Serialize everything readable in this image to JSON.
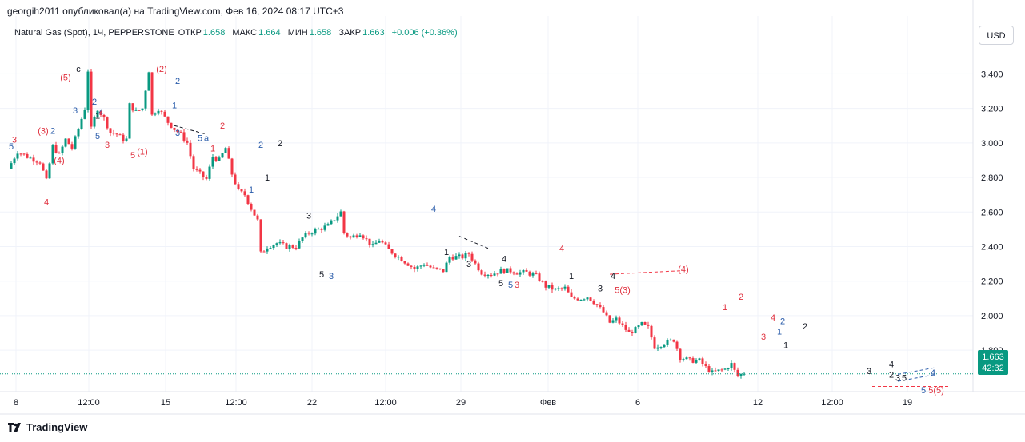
{
  "header": {
    "published_by": "georgih2011 опубликовал(а) на TradingView.com, Фев 16, 2024 08:17 UTC+3"
  },
  "legend": {
    "symbol": "Natural Gas (Spot), 1Ч, PEPPERSTONE",
    "open_label": "ОТКР",
    "open_value": "1.658",
    "high_label": "МАКС",
    "high_value": "1.664",
    "low_label": "МИН",
    "low_value": "1.658",
    "close_label": "ЗАКР",
    "close_value": "1.663",
    "change": "+0.006 (+0.36%)"
  },
  "currency_button": "USD",
  "price_badge": {
    "price": "1.663",
    "countdown": "42:32"
  },
  "footer": {
    "brand": "TradingView"
  },
  "colors": {
    "up": "#089981",
    "down": "#f23645",
    "wave_red": "#e0313f",
    "wave_blue": "#2a5caa",
    "wave_black": "#131722"
  },
  "chart_data": {
    "type": "candlestick",
    "y_axis": {
      "ticks": [
        "3.400",
        "3.200",
        "3.000",
        "2.800",
        "2.600",
        "2.400",
        "2.200",
        "2.000",
        "1.800"
      ],
      "range": [
        1.56,
        3.55
      ]
    },
    "x_axis": {
      "ticks": [
        "8",
        "12:00",
        "15",
        "12:00",
        "22",
        "12:00",
        "29",
        "Фев",
        "6",
        "12",
        "12:00",
        "19"
      ]
    },
    "current_price": 1.663,
    "price_path": [
      [
        0,
        2.85
      ],
      [
        3,
        2.95
      ],
      [
        6,
        2.92
      ],
      [
        10,
        2.89
      ],
      [
        12,
        2.78
      ],
      [
        14,
        2.98
      ],
      [
        16,
        2.93
      ],
      [
        18,
        3.02
      ],
      [
        20,
        2.97
      ],
      [
        22,
        3.08
      ],
      [
        24,
        3.2
      ],
      [
        25,
        3.42
      ],
      [
        26,
        3.08
      ],
      [
        28,
        3.2
      ],
      [
        30,
        3.14
      ],
      [
        32,
        3.06
      ],
      [
        34,
        3.05
      ],
      [
        36,
        3.02
      ],
      [
        37,
        3.02
      ],
      [
        38,
        3.22
      ],
      [
        40,
        3.18
      ],
      [
        42,
        3.2
      ],
      [
        44,
        3.42
      ],
      [
        45,
        3.16
      ],
      [
        47,
        3.2
      ],
      [
        50,
        3.12
      ],
      [
        52,
        3.08
      ],
      [
        54,
        3.05
      ],
      [
        56,
        3.0
      ],
      [
        58,
        2.85
      ],
      [
        60,
        2.82
      ],
      [
        62,
        2.79
      ],
      [
        64,
        2.92
      ],
      [
        66,
        2.9
      ],
      [
        68,
        2.97
      ],
      [
        70,
        2.82
      ],
      [
        72,
        2.72
      ],
      [
        74,
        2.7
      ],
      [
        76,
        2.62
      ],
      [
        78,
        2.55
      ],
      [
        79,
        2.36
      ],
      [
        81,
        2.4
      ],
      [
        84,
        2.42
      ],
      [
        87,
        2.4
      ],
      [
        90,
        2.4
      ],
      [
        92,
        2.45
      ],
      [
        94,
        2.48
      ],
      [
        97,
        2.5
      ],
      [
        100,
        2.52
      ],
      [
        102,
        2.56
      ],
      [
        104,
        2.6
      ],
      [
        105,
        2.48
      ],
      [
        107,
        2.45
      ],
      [
        110,
        2.48
      ],
      [
        112,
        2.44
      ],
      [
        114,
        2.4
      ],
      [
        116,
        2.44
      ],
      [
        119,
        2.38
      ],
      [
        122,
        2.34
      ],
      [
        125,
        2.3
      ],
      [
        127,
        2.27
      ],
      [
        130,
        2.3
      ],
      [
        133,
        2.27
      ],
      [
        136,
        2.26
      ],
      [
        138,
        2.34
      ],
      [
        140,
        2.34
      ],
      [
        142,
        2.34
      ],
      [
        144,
        2.36
      ],
      [
        146,
        2.3
      ],
      [
        148,
        2.25
      ],
      [
        151,
        2.24
      ],
      [
        154,
        2.26
      ],
      [
        157,
        2.26
      ],
      [
        159,
        2.25
      ],
      [
        162,
        2.25
      ],
      [
        165,
        2.23
      ],
      [
        168,
        2.17
      ],
      [
        171,
        2.15
      ],
      [
        174,
        2.16
      ],
      [
        176,
        2.1
      ],
      [
        179,
        2.1
      ],
      [
        181,
        2.11
      ],
      [
        183,
        2.08
      ],
      [
        186,
        2.02
      ],
      [
        188,
        1.96
      ],
      [
        190,
        1.98
      ],
      [
        192,
        1.94
      ],
      [
        194,
        1.9
      ],
      [
        196,
        1.92
      ],
      [
        198,
        1.95
      ],
      [
        200,
        1.93
      ],
      [
        202,
        1.82
      ],
      [
        205,
        1.84
      ],
      [
        208,
        1.86
      ],
      [
        210,
        1.76
      ],
      [
        213,
        1.74
      ],
      [
        216,
        1.74
      ],
      [
        218,
        1.7
      ],
      [
        220,
        1.67
      ],
      [
        222,
        1.68
      ],
      [
        224,
        1.69
      ],
      [
        226,
        1.72
      ],
      [
        227,
        1.68
      ],
      [
        228,
        1.65
      ],
      [
        229,
        1.66
      ],
      [
        230,
        1.663
      ]
    ],
    "wave_labels": [
      {
        "text": "3",
        "bar": 2,
        "price": 3.02,
        "color": "red"
      },
      {
        "text": "5",
        "bar": 1,
        "price": 2.98,
        "color": "blue"
      },
      {
        "text": "4",
        "bar": 12,
        "price": 2.66,
        "color": "red"
      },
      {
        "text": "(3)",
        "bar": 11,
        "price": 3.07,
        "color": "red"
      },
      {
        "text": "2",
        "bar": 14,
        "price": 3.07,
        "color": "blue"
      },
      {
        "text": "(4)",
        "bar": 16,
        "price": 2.9,
        "color": "red"
      },
      {
        "text": "(5)",
        "bar": 18,
        "price": 3.38,
        "color": "red"
      },
      {
        "text": "c",
        "bar": 22,
        "price": 3.43,
        "color": "black"
      },
      {
        "text": "3",
        "bar": 21,
        "price": 3.19,
        "color": "blue"
      },
      {
        "text": "2",
        "bar": 27,
        "price": 3.24,
        "color": "blue"
      },
      {
        "text": "1",
        "bar": 28,
        "price": 3.16,
        "color": "black"
      },
      {
        "text": "5",
        "bar": 28,
        "price": 3.04,
        "color": "blue"
      },
      {
        "text": "4",
        "bar": 29,
        "price": 3.18,
        "color": "blue"
      },
      {
        "text": "3",
        "bar": 31,
        "price": 2.99,
        "color": "red"
      },
      {
        "text": "5",
        "bar": 39,
        "price": 2.93,
        "color": "red"
      },
      {
        "text": "(1)",
        "bar": 42,
        "price": 2.95,
        "color": "red"
      },
      {
        "text": "(2)",
        "bar": 48,
        "price": 3.43,
        "color": "red"
      },
      {
        "text": "2",
        "bar": 53,
        "price": 3.36,
        "color": "blue"
      },
      {
        "text": "1",
        "bar": 52,
        "price": 3.22,
        "color": "blue"
      },
      {
        "text": "3",
        "bar": 53,
        "price": 3.06,
        "color": "blue"
      },
      {
        "text": "5",
        "bar": 60,
        "price": 3.03,
        "color": "blue"
      },
      {
        "text": "a",
        "bar": 62,
        "price": 3.03,
        "color": "blue"
      },
      {
        "text": "1",
        "bar": 64,
        "price": 2.97,
        "color": "red"
      },
      {
        "text": "2",
        "bar": 67,
        "price": 3.1,
        "color": "red"
      },
      {
        "text": "1",
        "bar": 76,
        "price": 2.73,
        "color": "blue"
      },
      {
        "text": "2",
        "bar": 79,
        "price": 2.99,
        "color": "blue"
      },
      {
        "text": "1",
        "bar": 81,
        "price": 2.8,
        "color": "black"
      },
      {
        "text": "2",
        "bar": 85,
        "price": 3.0,
        "color": "black"
      },
      {
        "text": "3",
        "bar": 94,
        "price": 2.58,
        "color": "black"
      },
      {
        "text": "5",
        "bar": 98,
        "price": 2.24,
        "color": "black"
      },
      {
        "text": "3",
        "bar": 101,
        "price": 2.23,
        "color": "blue"
      },
      {
        "text": "4",
        "bar": 133,
        "price": 2.62,
        "color": "blue"
      },
      {
        "text": "1",
        "bar": 137,
        "price": 2.37,
        "color": "black"
      },
      {
        "text": "3",
        "bar": 144,
        "price": 2.3,
        "color": "black"
      },
      {
        "text": "4",
        "bar": 155,
        "price": 2.33,
        "color": "black"
      },
      {
        "text": "5",
        "bar": 154,
        "price": 2.19,
        "color": "black"
      },
      {
        "text": "5",
        "bar": 157,
        "price": 2.18,
        "color": "blue"
      },
      {
        "text": "3",
        "bar": 159,
        "price": 2.18,
        "color": "red"
      },
      {
        "text": "4",
        "bar": 173,
        "price": 2.39,
        "color": "red"
      },
      {
        "text": "1",
        "bar": 176,
        "price": 2.23,
        "color": "black"
      },
      {
        "text": "3",
        "bar": 185,
        "price": 2.16,
        "color": "black"
      },
      {
        "text": "4",
        "bar": 189,
        "price": 2.23,
        "color": "black"
      },
      {
        "text": "5(3)",
        "bar": 192,
        "price": 2.15,
        "color": "red"
      },
      {
        "text": "(4)",
        "bar": 211,
        "price": 2.27,
        "color": "red"
      },
      {
        "text": "1",
        "bar": 224,
        "price": 2.05,
        "color": "red"
      },
      {
        "text": "2",
        "bar": 229,
        "price": 2.11,
        "color": "red"
      },
      {
        "text": "3",
        "bar": 236,
        "price": 1.88,
        "color": "red"
      },
      {
        "text": "4",
        "bar": 239,
        "price": 1.99,
        "color": "red"
      },
      {
        "text": "1",
        "bar": 241,
        "price": 1.91,
        "color": "blue"
      },
      {
        "text": "2",
        "bar": 242,
        "price": 1.97,
        "color": "blue"
      },
      {
        "text": "1",
        "bar": 243,
        "price": 1.83,
        "color": "black"
      },
      {
        "text": "2",
        "bar": 249,
        "price": 1.94,
        "color": "black"
      },
      {
        "text": "3",
        "bar": 269,
        "price": 1.68,
        "color": "black"
      },
      {
        "text": "4",
        "bar": 276,
        "price": 1.72,
        "color": "black"
      },
      {
        "text": "2",
        "bar": 276,
        "price": 1.66,
        "color": "black"
      },
      {
        "text": "3",
        "bar": 278,
        "price": 1.64,
        "color": "black"
      },
      {
        "text": "5",
        "bar": 280,
        "price": 1.64,
        "color": "black"
      },
      {
        "text": "4",
        "bar": 289,
        "price": 1.67,
        "color": "blue"
      },
      {
        "text": "5",
        "bar": 286,
        "price": 1.57,
        "color": "blue"
      },
      {
        "text": "5(5)",
        "bar": 290,
        "price": 1.57,
        "color": "red"
      }
    ]
  }
}
